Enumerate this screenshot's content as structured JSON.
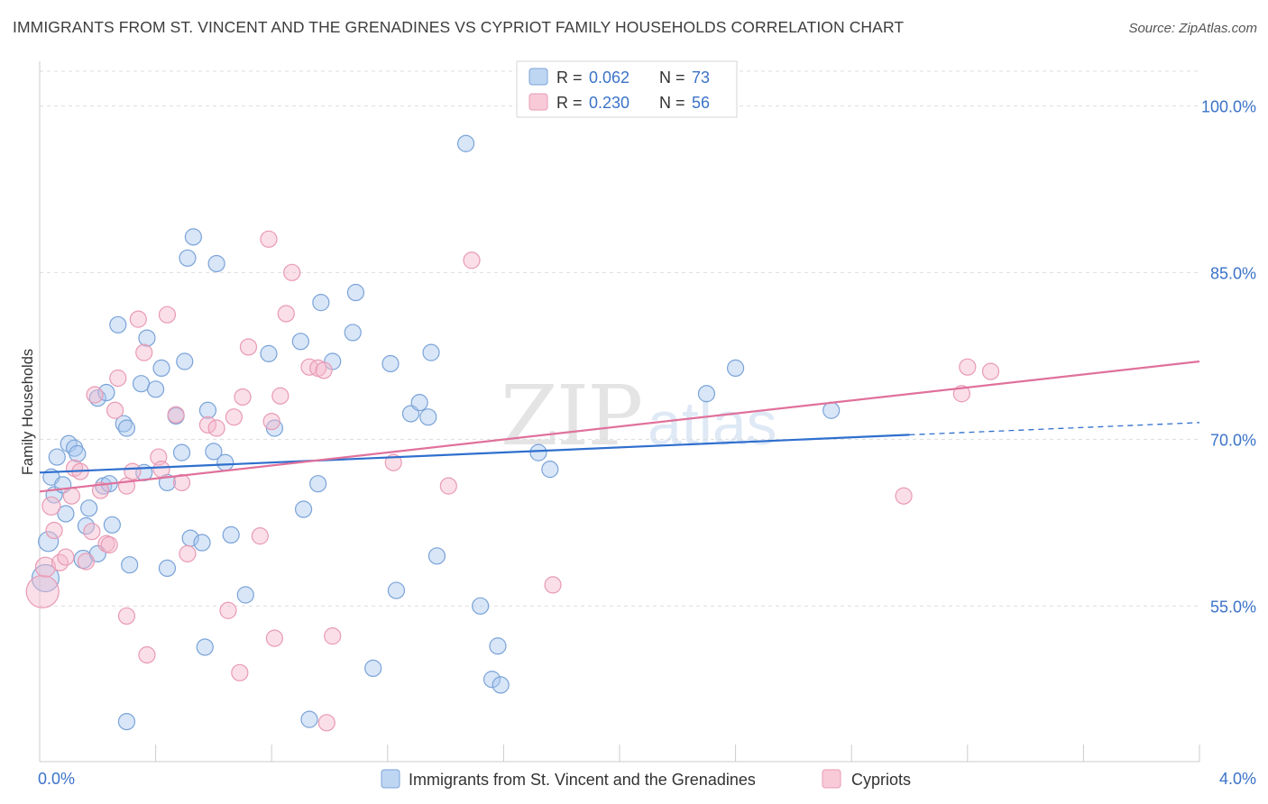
{
  "title": "IMMIGRANTS FROM ST. VINCENT AND THE GRENADINES VS CYPRIOT FAMILY HOUSEHOLDS CORRELATION CHART",
  "source": "Source: ZipAtlas.com",
  "watermark": {
    "zip": "ZIP",
    "atlas": "atlas"
  },
  "colors": {
    "blue_fill": "#a9c8ef",
    "blue_stroke": "#7aa3d8",
    "blue_line": "#2f6fce",
    "pink_fill": "#f5b8cb",
    "pink_stroke": "#e99ab3",
    "pink_line": "#e0719b",
    "tick_label": "#3b73c8",
    "grid": "#dddddd"
  },
  "legend_top": {
    "rows": [
      {
        "r_label": "R = ",
        "r_value": "0.062",
        "n_label": "N = ",
        "n_value": "73",
        "color": "blue"
      },
      {
        "r_label": "R = ",
        "r_value": "0.230",
        "n_label": "N = ",
        "n_value": "56",
        "color": "pink"
      }
    ]
  },
  "legend_bottom": [
    {
      "label": "Immigrants from St. Vincent and the Grenadines",
      "color": "blue"
    },
    {
      "label": "Cypriots",
      "color": "pink"
    }
  ],
  "chart_data": {
    "type": "scatter",
    "xlabel": "",
    "ylabel": "Family Households",
    "xlim": [
      0,
      4
    ],
    "ylim": [
      41,
      104
    ],
    "x_tick_labels": [
      {
        "value": 0,
        "label": "0.0%"
      },
      {
        "value": 4,
        "label": "4.0%"
      }
    ],
    "y_tick_labels": [
      {
        "value": 100,
        "label": "100.0%"
      },
      {
        "value": 85,
        "label": "85.0%"
      },
      {
        "value": 70,
        "label": "70.0%"
      },
      {
        "value": 55,
        "label": "55.0%"
      }
    ],
    "grid": true,
    "legend_position": "top-center",
    "series": [
      {
        "name": "Immigrants from St. Vincent and the Grenadines",
        "color": "blue",
        "r": 0.062,
        "n": 73,
        "trend": {
          "x0": 0,
          "y0": 67.0,
          "x1": 3.0,
          "y1": 70.4,
          "dash_to_x": 4.0,
          "dash_to_y": 71.5
        },
        "points": [
          [
            0.02,
            57.5,
            15
          ],
          [
            0.03,
            60.8,
            11
          ],
          [
            0.04,
            66.6,
            9
          ],
          [
            0.05,
            65.0,
            9
          ],
          [
            0.06,
            68.4,
            9
          ],
          [
            0.08,
            65.9,
            9
          ],
          [
            0.09,
            63.3,
            9
          ],
          [
            0.1,
            69.6,
            9
          ],
          [
            0.12,
            69.2,
            9
          ],
          [
            0.13,
            68.7,
            9
          ],
          [
            0.15,
            59.2,
            10
          ],
          [
            0.16,
            62.2,
            9
          ],
          [
            0.17,
            63.8,
            9
          ],
          [
            0.2,
            73.7,
            9
          ],
          [
            0.2,
            59.7,
            9
          ],
          [
            0.22,
            65.8,
            9
          ],
          [
            0.23,
            74.2,
            9
          ],
          [
            0.24,
            66.0,
            9
          ],
          [
            0.25,
            62.3,
            9
          ],
          [
            0.27,
            80.3,
            9
          ],
          [
            0.29,
            71.4,
            9
          ],
          [
            0.3,
            71.0,
            9
          ],
          [
            0.31,
            58.7,
            9
          ],
          [
            0.35,
            75.0,
            9
          ],
          [
            0.36,
            67.0,
            9
          ],
          [
            0.37,
            79.1,
            9
          ],
          [
            0.4,
            74.5,
            9
          ],
          [
            0.42,
            76.4,
            9
          ],
          [
            0.44,
            58.4,
            9
          ],
          [
            0.44,
            66.1,
            9
          ],
          [
            0.47,
            72.1,
            9
          ],
          [
            0.49,
            68.8,
            9
          ],
          [
            0.5,
            77.0,
            9
          ],
          [
            0.51,
            86.3,
            9
          ],
          [
            0.52,
            61.1,
            9
          ],
          [
            0.53,
            88.2,
            9
          ],
          [
            0.56,
            60.7,
            9
          ],
          [
            0.57,
            51.3,
            9
          ],
          [
            0.58,
            72.6,
            9
          ],
          [
            0.6,
            68.9,
            9
          ],
          [
            0.61,
            85.8,
            9
          ],
          [
            0.64,
            67.9,
            9
          ],
          [
            0.66,
            61.4,
            9
          ],
          [
            0.71,
            56.0,
            9
          ],
          [
            0.79,
            77.7,
            9
          ],
          [
            0.81,
            71.0,
            9
          ],
          [
            0.9,
            78.8,
            9
          ],
          [
            0.91,
            63.7,
            9
          ],
          [
            0.93,
            44.8,
            9
          ],
          [
            0.96,
            66.0,
            9
          ],
          [
            0.97,
            82.3,
            9
          ],
          [
            1.01,
            77.0,
            9
          ],
          [
            1.08,
            79.6,
            9
          ],
          [
            1.09,
            83.2,
            9
          ],
          [
            1.15,
            49.4,
            9
          ],
          [
            1.21,
            76.8,
            9
          ],
          [
            1.23,
            56.4,
            9
          ],
          [
            1.28,
            72.3,
            9
          ],
          [
            1.31,
            73.3,
            9
          ],
          [
            1.34,
            72.0,
            9
          ],
          [
            1.35,
            77.8,
            9
          ],
          [
            1.37,
            59.5,
            9
          ],
          [
            1.47,
            96.6,
            9
          ],
          [
            1.52,
            55.0,
            9
          ],
          [
            1.56,
            48.4,
            9
          ],
          [
            1.58,
            51.4,
            9
          ],
          [
            1.59,
            47.9,
            9
          ],
          [
            1.72,
            68.8,
            9
          ],
          [
            1.76,
            67.3,
            9
          ],
          [
            2.3,
            74.1,
            9
          ],
          [
            2.4,
            76.4,
            9
          ],
          [
            2.73,
            72.6,
            9
          ],
          [
            0.3,
            44.6,
            9
          ]
        ]
      },
      {
        "name": "Cypriots",
        "color": "pink",
        "r": 0.23,
        "n": 56,
        "trend": {
          "x0": 0,
          "y0": 65.3,
          "x1": 4.0,
          "y1": 77.0
        },
        "points": [
          [
            0.01,
            56.3,
            18
          ],
          [
            0.02,
            58.5,
            11
          ],
          [
            0.04,
            64.0,
            10
          ],
          [
            0.05,
            61.8,
            9
          ],
          [
            0.07,
            58.9,
            9
          ],
          [
            0.09,
            59.4,
            9
          ],
          [
            0.11,
            64.9,
            9
          ],
          [
            0.12,
            67.4,
            9
          ],
          [
            0.14,
            67.1,
            9
          ],
          [
            0.16,
            59.0,
            9
          ],
          [
            0.18,
            61.7,
            9
          ],
          [
            0.19,
            74.0,
            9
          ],
          [
            0.21,
            65.4,
            9
          ],
          [
            0.23,
            60.6,
            9
          ],
          [
            0.24,
            60.5,
            9
          ],
          [
            0.26,
            72.6,
            9
          ],
          [
            0.27,
            75.5,
            9
          ],
          [
            0.3,
            54.1,
            9
          ],
          [
            0.3,
            65.8,
            9
          ],
          [
            0.32,
            67.1,
            9
          ],
          [
            0.34,
            80.8,
            9
          ],
          [
            0.36,
            77.8,
            9
          ],
          [
            0.37,
            50.6,
            9
          ],
          [
            0.41,
            68.4,
            9
          ],
          [
            0.42,
            67.3,
            9
          ],
          [
            0.44,
            81.2,
            9
          ],
          [
            0.47,
            72.2,
            9
          ],
          [
            0.49,
            66.1,
            9
          ],
          [
            0.51,
            59.7,
            9
          ],
          [
            0.58,
            71.3,
            9
          ],
          [
            0.61,
            71.0,
            9
          ],
          [
            0.65,
            54.6,
            9
          ],
          [
            0.67,
            72.0,
            9
          ],
          [
            0.69,
            49.0,
            9
          ],
          [
            0.7,
            73.8,
            9
          ],
          [
            0.72,
            78.3,
            9
          ],
          [
            0.76,
            61.3,
            9
          ],
          [
            0.79,
            88.0,
            9
          ],
          [
            0.8,
            71.6,
            9
          ],
          [
            0.81,
            52.1,
            9
          ],
          [
            0.83,
            73.9,
            9
          ],
          [
            0.85,
            81.3,
            9
          ],
          [
            0.87,
            85.0,
            9
          ],
          [
            0.93,
            76.5,
            9
          ],
          [
            0.96,
            76.4,
            9
          ],
          [
            0.98,
            76.2,
            9
          ],
          [
            0.99,
            44.5,
            9
          ],
          [
            1.01,
            52.3,
            9
          ],
          [
            1.22,
            67.9,
            9
          ],
          [
            1.41,
            65.8,
            9
          ],
          [
            1.49,
            86.1,
            9
          ],
          [
            1.77,
            56.9,
            9
          ],
          [
            2.98,
            64.9,
            9
          ],
          [
            3.18,
            74.1,
            9
          ],
          [
            3.2,
            76.5,
            9
          ],
          [
            3.28,
            76.1,
            9
          ]
        ]
      }
    ]
  }
}
